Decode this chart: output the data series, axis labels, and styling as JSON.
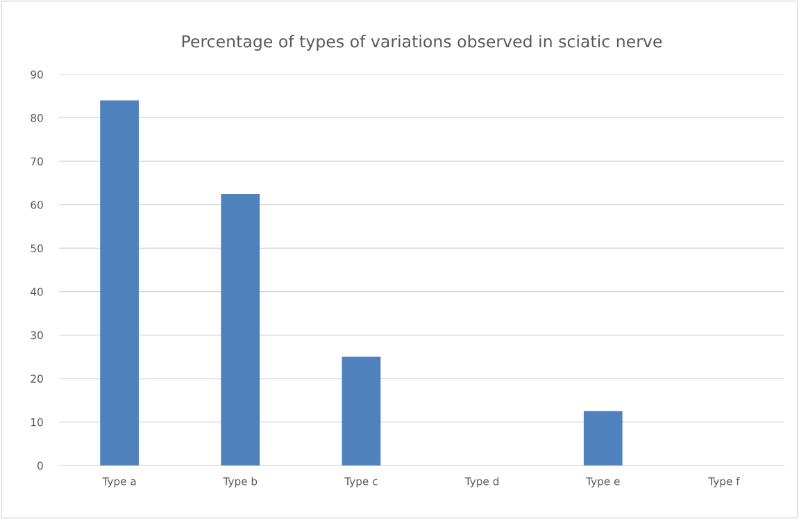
{
  "chart_data": {
    "type": "bar",
    "title": "Percentage of types of variations observed in sciatic nerve",
    "categories": [
      "Type a",
      "Type b",
      "Type c",
      "Type d",
      "Type e",
      "Type f"
    ],
    "values": [
      84,
      62.5,
      25,
      0,
      12.5,
      0
    ],
    "color": "#4f81bd",
    "ylim": [
      0,
      90
    ],
    "yticks": [
      0,
      10,
      20,
      30,
      40,
      50,
      60,
      70,
      80,
      90
    ],
    "grid": "y",
    "legend": false
  }
}
